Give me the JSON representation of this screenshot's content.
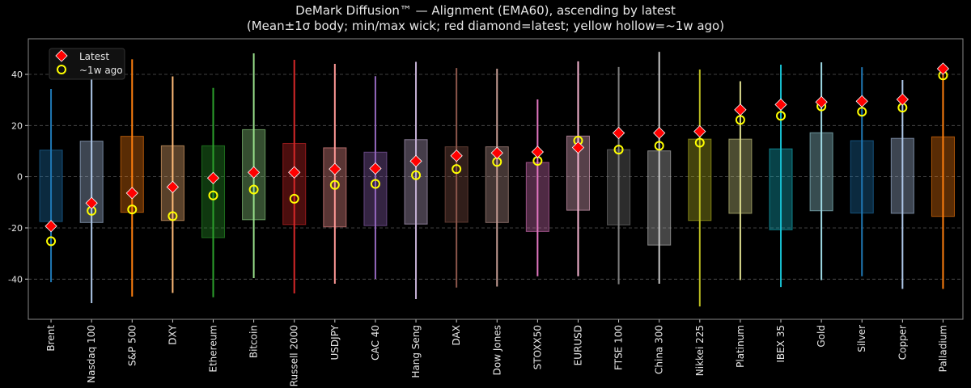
{
  "chart_data": {
    "type": "box-range",
    "title": "DeMark Diffusion™ — Alignment (EMA60), ascending by latest",
    "subtitle": "(Mean±1σ body; min/max wick; red diamond=latest; yellow hollow=~1w ago)",
    "xlabel": "",
    "ylabel": "",
    "ylim": [
      -55.7,
      53.9
    ],
    "yticks": [
      -40,
      -20,
      0,
      20,
      40
    ],
    "grid": "horizontal dashed",
    "legend": {
      "placement": "top-left",
      "entries": [
        "Latest",
        "~1w ago"
      ]
    },
    "colors": {
      "latest": "#ff0000",
      "week_ago": "#ffff00",
      "background": "#000000"
    },
    "categories": [
      "Brent",
      "Nasdaq 100",
      "S&P 500",
      "DXY",
      "Ethereum",
      "Bitcoin",
      "Russell 2000",
      "USDJPY",
      "CAC 40",
      "Hang Seng",
      "DAX",
      "Dow Jones",
      "STOXX50",
      "EURUSD",
      "FTSE 100",
      "China 300",
      "Nikkei 225",
      "Platinum",
      "IBEX 35",
      "Gold",
      "Silver",
      "Copper",
      "Palladium"
    ],
    "series_colors": [
      "#1f77b4",
      "#aec7e8",
      "#ff7f0e",
      "#ffbb78",
      "#2ca02c",
      "#98df8a",
      "#d62728",
      "#ff9896",
      "#9467bd",
      "#c5b0d5",
      "#8c564b",
      "#c49c94",
      "#e377c2",
      "#f7b6d2",
      "#7f7f7f",
      "#c7c7c7",
      "#bcbd22",
      "#dbdb8d",
      "#17becf",
      "#9edae5",
      "#1f77b4",
      "#aec7e8",
      "#ff7f0e"
    ],
    "box_upper": [
      10.4,
      13.9,
      15.8,
      12.1,
      12.1,
      18.4,
      13.0,
      11.3,
      9.6,
      14.5,
      11.7,
      11.7,
      5.6,
      15.9,
      10.6,
      10.1,
      14.7,
      14.7,
      10.9,
      17.2,
      14.1,
      15.0,
      15.6
    ],
    "box_lower": [
      -17.5,
      -17.9,
      -13.9,
      -17.1,
      -23.8,
      -16.8,
      -18.7,
      -19.6,
      -19.1,
      -18.5,
      -17.8,
      -17.9,
      -21.4,
      -13.1,
      -18.8,
      -26.7,
      -17.1,
      -14.3,
      -20.7,
      -13.3,
      -14.2,
      -14.3,
      -15.5
    ],
    "max": [
      34.3,
      42.0,
      45.9,
      39.2,
      34.7,
      48.2,
      45.7,
      44.1,
      39.3,
      44.9,
      42.5,
      42.2,
      30.2,
      45.1,
      42.9,
      48.8,
      41.9,
      37.3,
      43.8,
      44.7,
      42.8,
      37.8,
      42.5
    ],
    "min": [
      -41.2,
      -49.4,
      -46.8,
      -45.4,
      -47.1,
      -39.6,
      -45.6,
      -41.8,
      -39.9,
      -47.8,
      -43.3,
      -42.9,
      -38.9,
      -38.9,
      -42.0,
      -41.8,
      -50.7,
      -40.4,
      -43.1,
      -40.4,
      -38.9,
      -43.8,
      -43.8
    ],
    "latest": [
      -19.3,
      -10.3,
      -6.4,
      -4.0,
      -0.5,
      1.7,
      1.7,
      3.0,
      3.2,
      6.1,
      8.2,
      9.3,
      9.7,
      11.4,
      17.1,
      17.1,
      17.7,
      26.2,
      28.2,
      29.2,
      29.5,
      30.2,
      42.2
    ],
    "week_ago": [
      -25.2,
      -13.3,
      -12.8,
      -15.4,
      -7.3,
      -5.0,
      -8.6,
      -3.2,
      -2.8,
      0.6,
      3.0,
      5.8,
      6.2,
      14.1,
      10.6,
      12.1,
      13.3,
      22.2,
      23.8,
      27.5,
      25.4,
      27.0,
      39.6
    ]
  }
}
